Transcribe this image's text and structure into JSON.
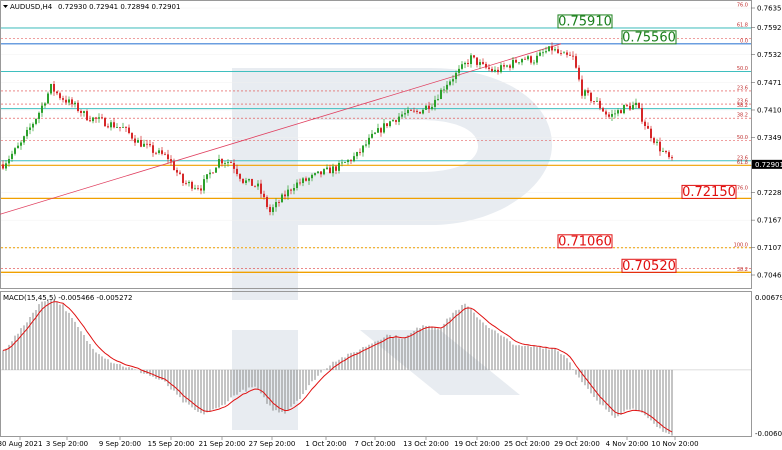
{
  "header": {
    "symbol": "AUDUSD,H4",
    "ohlc": "0.72930 0.72941 0.72894 0.72901"
  },
  "price_axis": {
    "ticks": [
      "0.76350",
      "0.75920",
      "0.75320",
      "0.74710",
      "0.74100",
      "0.73490",
      "0.72880",
      "0.72280",
      "0.71670",
      "0.71070",
      "0.70460"
    ],
    "current_price": "0.72901"
  },
  "macd": {
    "label": "MACD(15,45,5) -0.005466 -0.005272",
    "axis_max": "0.006792",
    "axis_min": "-0.00605"
  },
  "x_axis": {
    "labels": [
      "30 Aug 2021",
      "3 Sep 20:00",
      "9 Sep 20:00",
      "15 Sep 20:00",
      "21 Sep 20:00",
      "27 Sep 20:00",
      "1 Oct 20:00",
      "7 Oct 20:00",
      "13 Oct 20:00",
      "19 Oct 20:00",
      "25 Oct 20:00",
      "29 Oct 20:00",
      "4 Nov 20:00",
      "10 Nov 20:00"
    ]
  },
  "levels": [
    {
      "label": "0.75910",
      "price": 0.7591,
      "color": "#1a7f1a"
    },
    {
      "label": "0.75560",
      "price": 0.7556,
      "color": "#1a7f1a"
    },
    {
      "label": "0.72150",
      "price": 0.7215,
      "color": "#e01010"
    },
    {
      "label": "0.71060",
      "price": 0.7106,
      "color": "#e01010"
    },
    {
      "label": "0.70520",
      "price": 0.7052,
      "color": "#e01010"
    }
  ],
  "fib_tags": [
    {
      "label": "76.0",
      "price": 0.7635
    },
    {
      "label": "61.8",
      "price": 0.7591
    },
    {
      "label": "0.0",
      "price": 0.7556
    },
    {
      "label": "50.0",
      "price": 0.7495
    },
    {
      "label": "23.6",
      "price": 0.7452
    },
    {
      "label": "23.6",
      "price": 0.7423
    },
    {
      "label": "38.2",
      "price": 0.7413
    },
    {
      "label": "38.2",
      "price": 0.7392
    },
    {
      "label": "50.0",
      "price": 0.7343
    },
    {
      "label": "23.6",
      "price": 0.7298
    },
    {
      "label": "61.8",
      "price": 0.7288
    },
    {
      "label": "76.0",
      "price": 0.7231
    },
    {
      "label": "100.0",
      "price": 0.7106
    },
    {
      "label": "38.2",
      "price": 0.7052
    }
  ],
  "colors": {
    "bull": "#2ca02c",
    "bear": "#d62728",
    "fib_cyan": "#3fbfbf",
    "fib_red": "#e04040",
    "fib_orange": "#f0a000",
    "signal": "#e01010",
    "hist": "#888888"
  },
  "chart_data": {
    "type": "candlestick",
    "y_range": [
      0.7035,
      0.764
    ],
    "macd_range": [
      -0.00605,
      0.006792
    ],
    "path_anchors": [
      [
        0,
        0.729
      ],
      [
        6,
        0.7335
      ],
      [
        12,
        0.7405
      ],
      [
        16,
        0.746
      ],
      [
        19,
        0.744
      ],
      [
        24,
        0.7418
      ],
      [
        28,
        0.7395
      ],
      [
        33,
        0.7385
      ],
      [
        40,
        0.737
      ],
      [
        45,
        0.734
      ],
      [
        50,
        0.732
      ],
      [
        55,
        0.7305
      ],
      [
        60,
        0.725
      ],
      [
        66,
        0.724
      ],
      [
        72,
        0.73
      ],
      [
        76,
        0.7295
      ],
      [
        80,
        0.7255
      ],
      [
        85,
        0.724
      ],
      [
        89,
        0.7185
      ],
      [
        93,
        0.7215
      ],
      [
        97,
        0.7245
      ],
      [
        101,
        0.7255
      ],
      [
        106,
        0.727
      ],
      [
        112,
        0.7285
      ],
      [
        118,
        0.731
      ],
      [
        123,
        0.735
      ],
      [
        128,
        0.738
      ],
      [
        133,
        0.74
      ],
      [
        138,
        0.7405
      ],
      [
        143,
        0.7425
      ],
      [
        148,
        0.747
      ],
      [
        152,
        0.7495
      ],
      [
        156,
        0.7525
      ],
      [
        160,
        0.7505
      ],
      [
        164,
        0.7495
      ],
      [
        169,
        0.751
      ],
      [
        173,
        0.7525
      ],
      [
        177,
        0.752
      ],
      [
        180,
        0.7535
      ],
      [
        183,
        0.7545
      ],
      [
        186,
        0.753
      ],
      [
        190,
        0.7525
      ],
      [
        193,
        0.745
      ],
      [
        198,
        0.7425
      ],
      [
        202,
        0.7395
      ],
      [
        207,
        0.7415
      ],
      [
        211,
        0.742
      ],
      [
        215,
        0.7365
      ],
      [
        219,
        0.7325
      ],
      [
        223,
        0.7295
      ]
    ],
    "macd_anchors": [
      [
        0,
        0.0018
      ],
      [
        6,
        0.0038
      ],
      [
        12,
        0.0062
      ],
      [
        16,
        0.0068
      ],
      [
        20,
        0.0061
      ],
      [
        25,
        0.004
      ],
      [
        30,
        0.002
      ],
      [
        36,
        0.0008
      ],
      [
        42,
        0.0002
      ],
      [
        48,
        -0.0004
      ],
      [
        54,
        -0.0012
      ],
      [
        60,
        -0.003
      ],
      [
        66,
        -0.0042
      ],
      [
        72,
        -0.0036
      ],
      [
        78,
        -0.0022
      ],
      [
        84,
        -0.0016
      ],
      [
        90,
        -0.0038
      ],
      [
        94,
        -0.004
      ],
      [
        99,
        -0.0026
      ],
      [
        104,
        -0.0008
      ],
      [
        110,
        0.0008
      ],
      [
        116,
        0.0015
      ],
      [
        122,
        0.0024
      ],
      [
        128,
        0.0033
      ],
      [
        134,
        0.003
      ],
      [
        140,
        0.0043
      ],
      [
        146,
        0.004
      ],
      [
        150,
        0.0054
      ],
      [
        154,
        0.0062
      ],
      [
        160,
        0.0045
      ],
      [
        166,
        0.0032
      ],
      [
        172,
        0.0022
      ],
      [
        178,
        0.0022
      ],
      [
        184,
        0.002
      ],
      [
        188,
        0.0012
      ],
      [
        192,
        -0.0008
      ],
      [
        198,
        -0.003
      ],
      [
        204,
        -0.0044
      ],
      [
        210,
        -0.0035
      ],
      [
        214,
        -0.0044
      ],
      [
        218,
        -0.0054
      ],
      [
        223,
        -0.0062
      ]
    ],
    "n_candles": 224
  }
}
